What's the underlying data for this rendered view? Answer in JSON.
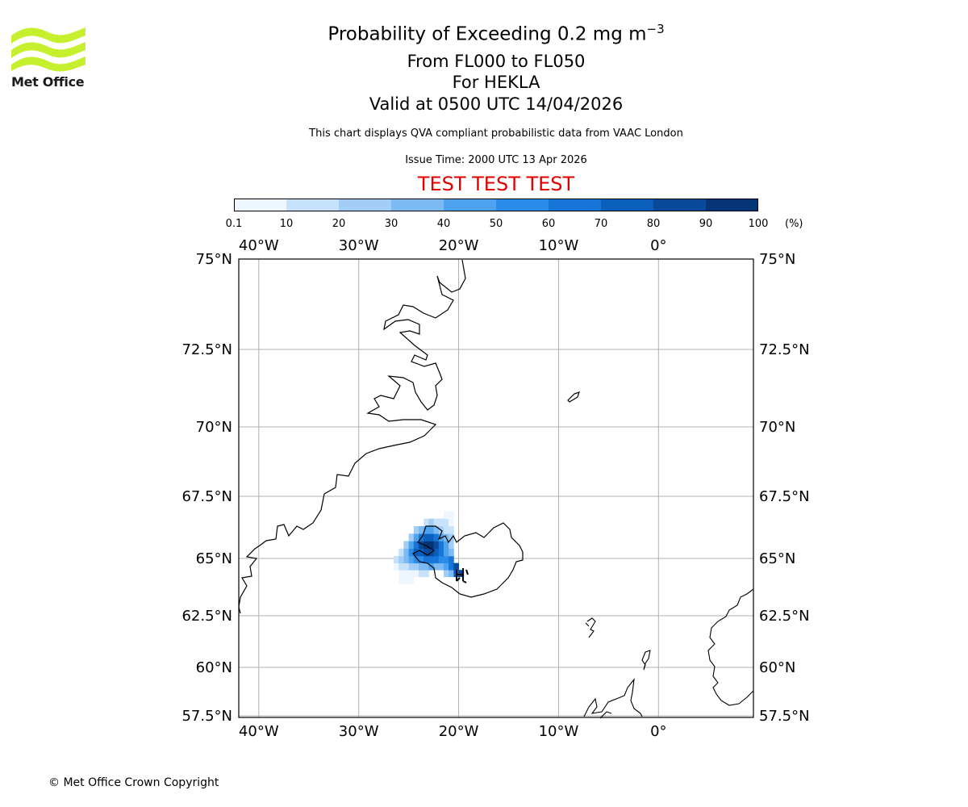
{
  "logo": {
    "name": "met-office-logo",
    "text": "Met Office",
    "color": "#c6f02e"
  },
  "title": {
    "main": "Probability of Exceeding 0.2 mg m",
    "superscript": "−3",
    "line2": "From FL000 to FL050",
    "line3": "For HEKLA",
    "line4": "Valid at 0500 UTC 14/04/2026"
  },
  "subtitle": "This chart displays QVA compliant probabilistic data from VAAC London",
  "issue_time": "Issue Time: 2000 UTC 13 Apr 2026",
  "test_banner": "TEST TEST TEST",
  "test_color": "#e00000",
  "colorbar": {
    "ticks": [
      "0.1",
      "10",
      "20",
      "30",
      "40",
      "50",
      "60",
      "70",
      "80",
      "90",
      "100"
    ],
    "unit": "(%)",
    "colors": [
      "#eef6ff",
      "#c7e2fb",
      "#a1cdf7",
      "#7bbaf3",
      "#4fa3ee",
      "#2a8ce8",
      "#1675d6",
      "#0a5fbb",
      "#084a99",
      "#063577"
    ]
  },
  "map": {
    "lon_labels": [
      "40°W",
      "30°W",
      "20°W",
      "10°W",
      "0°"
    ],
    "lon_values": [
      -40,
      -30,
      -20,
      -10,
      0
    ],
    "lat_labels": [
      "75°N",
      "72.5°N",
      "70°N",
      "67.5°N",
      "65°N",
      "62.5°N",
      "60°N",
      "57.5°N"
    ],
    "lat_values": [
      75,
      72.5,
      70,
      67.5,
      65,
      62.5,
      60,
      57.5
    ],
    "extent": {
      "lon_min": -42,
      "lon_max": 9.5,
      "lat_min": 57.5,
      "lat_max": 75
    },
    "grid": true,
    "coastline_color": "#000000"
  },
  "chart_data": {
    "type": "heatmap",
    "title": "Probability of Exceeding 0.2 mg m−3",
    "volcano": "HEKLA",
    "unit": "%",
    "cells": [
      {
        "lon": -26.0,
        "lat": 63.9,
        "value": 5
      },
      {
        "lon": -25.5,
        "lat": 63.9,
        "value": 5
      },
      {
        "lon": -25.0,
        "lat": 63.9,
        "value": 5
      },
      {
        "lon": -26.0,
        "lat": 64.2,
        "value": 5
      },
      {
        "lon": -25.5,
        "lat": 64.2,
        "value": 5
      },
      {
        "lon": -25.0,
        "lat": 64.2,
        "value": 5
      },
      {
        "lon": -24.5,
        "lat": 64.2,
        "value": 5
      },
      {
        "lon": -24.0,
        "lat": 64.2,
        "value": 15
      },
      {
        "lon": -23.5,
        "lat": 64.2,
        "value": 15
      },
      {
        "lon": -21.5,
        "lat": 64.2,
        "value": 25
      },
      {
        "lon": -21.0,
        "lat": 64.2,
        "value": 35
      },
      {
        "lon": -20.5,
        "lat": 64.2,
        "value": 75
      },
      {
        "lon": -20.0,
        "lat": 64.2,
        "value": 85
      },
      {
        "lon": -26.5,
        "lat": 64.5,
        "value": 5
      },
      {
        "lon": -26.0,
        "lat": 64.5,
        "value": 15
      },
      {
        "lon": -25.5,
        "lat": 64.5,
        "value": 15
      },
      {
        "lon": -25.0,
        "lat": 64.5,
        "value": 25
      },
      {
        "lon": -24.5,
        "lat": 64.5,
        "value": 25
      },
      {
        "lon": -24.0,
        "lat": 64.5,
        "value": 35
      },
      {
        "lon": -23.5,
        "lat": 64.5,
        "value": 35
      },
      {
        "lon": -23.0,
        "lat": 64.5,
        "value": 45
      },
      {
        "lon": -22.5,
        "lat": 64.5,
        "value": 35
      },
      {
        "lon": -22.0,
        "lat": 64.5,
        "value": 35
      },
      {
        "lon": -21.5,
        "lat": 64.5,
        "value": 45
      },
      {
        "lon": -21.0,
        "lat": 64.5,
        "value": 65
      },
      {
        "lon": -20.5,
        "lat": 64.5,
        "value": 85
      },
      {
        "lon": -26.5,
        "lat": 64.8,
        "value": 15
      },
      {
        "lon": -26.0,
        "lat": 64.8,
        "value": 25
      },
      {
        "lon": -25.5,
        "lat": 64.8,
        "value": 35
      },
      {
        "lon": -25.0,
        "lat": 64.8,
        "value": 45
      },
      {
        "lon": -24.5,
        "lat": 64.8,
        "value": 55
      },
      {
        "lon": -24.0,
        "lat": 64.8,
        "value": 55
      },
      {
        "lon": -23.5,
        "lat": 64.8,
        "value": 65
      },
      {
        "lon": -23.0,
        "lat": 64.8,
        "value": 65
      },
      {
        "lon": -22.5,
        "lat": 64.8,
        "value": 65
      },
      {
        "lon": -22.0,
        "lat": 64.8,
        "value": 55
      },
      {
        "lon": -21.5,
        "lat": 64.8,
        "value": 55
      },
      {
        "lon": -21.0,
        "lat": 64.8,
        "value": 65
      },
      {
        "lon": -26.0,
        "lat": 65.1,
        "value": 15
      },
      {
        "lon": -25.5,
        "lat": 65.1,
        "value": 35
      },
      {
        "lon": -25.0,
        "lat": 65.1,
        "value": 55
      },
      {
        "lon": -24.5,
        "lat": 65.1,
        "value": 75
      },
      {
        "lon": -24.0,
        "lat": 65.1,
        "value": 75
      },
      {
        "lon": -23.5,
        "lat": 65.1,
        "value": 85
      },
      {
        "lon": -23.0,
        "lat": 65.1,
        "value": 85
      },
      {
        "lon": -22.5,
        "lat": 65.1,
        "value": 75
      },
      {
        "lon": -22.0,
        "lat": 65.1,
        "value": 65
      },
      {
        "lon": -21.5,
        "lat": 65.1,
        "value": 45
      },
      {
        "lon": -21.0,
        "lat": 65.1,
        "value": 35
      },
      {
        "lon": -25.5,
        "lat": 65.4,
        "value": 25
      },
      {
        "lon": -25.0,
        "lat": 65.4,
        "value": 45
      },
      {
        "lon": -24.5,
        "lat": 65.4,
        "value": 65
      },
      {
        "lon": -24.0,
        "lat": 65.4,
        "value": 85
      },
      {
        "lon": -23.5,
        "lat": 65.4,
        "value": 95
      },
      {
        "lon": -23.0,
        "lat": 65.4,
        "value": 95
      },
      {
        "lon": -22.5,
        "lat": 65.4,
        "value": 85
      },
      {
        "lon": -22.0,
        "lat": 65.4,
        "value": 65
      },
      {
        "lon": -21.5,
        "lat": 65.4,
        "value": 45
      },
      {
        "lon": -21.0,
        "lat": 65.4,
        "value": 25
      },
      {
        "lon": -25.0,
        "lat": 65.7,
        "value": 25
      },
      {
        "lon": -24.5,
        "lat": 65.7,
        "value": 45
      },
      {
        "lon": -24.0,
        "lat": 65.7,
        "value": 65
      },
      {
        "lon": -23.5,
        "lat": 65.7,
        "value": 75
      },
      {
        "lon": -23.0,
        "lat": 65.7,
        "value": 75
      },
      {
        "lon": -22.5,
        "lat": 65.7,
        "value": 65
      },
      {
        "lon": -22.0,
        "lat": 65.7,
        "value": 45
      },
      {
        "lon": -21.5,
        "lat": 65.7,
        "value": 35
      },
      {
        "lon": -21.0,
        "lat": 65.7,
        "value": 25
      },
      {
        "lon": -24.5,
        "lat": 66.0,
        "value": 25
      },
      {
        "lon": -24.0,
        "lat": 66.0,
        "value": 35
      },
      {
        "lon": -23.5,
        "lat": 66.0,
        "value": 45
      },
      {
        "lon": -23.0,
        "lat": 66.0,
        "value": 45
      },
      {
        "lon": -22.5,
        "lat": 66.0,
        "value": 35
      },
      {
        "lon": -22.0,
        "lat": 66.0,
        "value": 25
      },
      {
        "lon": -21.5,
        "lat": 66.0,
        "value": 15
      },
      {
        "lon": -21.0,
        "lat": 66.0,
        "value": 15
      },
      {
        "lon": -23.5,
        "lat": 66.3,
        "value": 15
      },
      {
        "lon": -23.0,
        "lat": 66.3,
        "value": 25
      },
      {
        "lon": -22.5,
        "lat": 66.3,
        "value": 15
      },
      {
        "lon": -22.0,
        "lat": 66.3,
        "value": 15
      },
      {
        "lon": -21.5,
        "lat": 66.3,
        "value": 15
      },
      {
        "lon": -21.0,
        "lat": 66.3,
        "value": 5
      },
      {
        "lon": -21.5,
        "lat": 66.6,
        "value": 5
      },
      {
        "lon": -21.0,
        "lat": 66.6,
        "value": 5
      }
    ]
  },
  "copyright": "© Met Office Crown Copyright"
}
